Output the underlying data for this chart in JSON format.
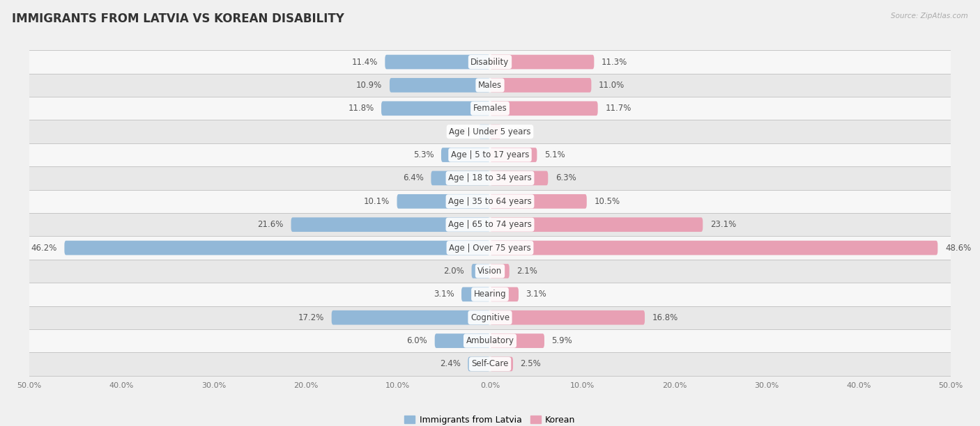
{
  "title": "IMMIGRANTS FROM LATVIA VS KOREAN DISABILITY",
  "source": "Source: ZipAtlas.com",
  "categories": [
    "Disability",
    "Males",
    "Females",
    "Age | Under 5 years",
    "Age | 5 to 17 years",
    "Age | 18 to 34 years",
    "Age | 35 to 64 years",
    "Age | 65 to 74 years",
    "Age | Over 75 years",
    "Vision",
    "Hearing",
    "Cognitive",
    "Ambulatory",
    "Self-Care"
  ],
  "left_values": [
    11.4,
    10.9,
    11.8,
    1.2,
    5.3,
    6.4,
    10.1,
    21.6,
    46.2,
    2.0,
    3.1,
    17.2,
    6.0,
    2.4
  ],
  "right_values": [
    11.3,
    11.0,
    11.7,
    1.2,
    5.1,
    6.3,
    10.5,
    23.1,
    48.6,
    2.1,
    3.1,
    16.8,
    5.9,
    2.5
  ],
  "left_color": "#92b8d8",
  "right_color": "#e8a0b4",
  "left_color_dark": "#5b8db8",
  "right_color_dark": "#d45f80",
  "bar_height": 0.62,
  "xlim": 50.0,
  "background_color": "#f0f0f0",
  "row_bg_even": "#f7f7f7",
  "row_bg_odd": "#e8e8e8",
  "legend_left": "Immigrants from Latvia",
  "legend_right": "Korean",
  "title_fontsize": 12,
  "value_fontsize": 8.5,
  "category_fontsize": 8.5
}
